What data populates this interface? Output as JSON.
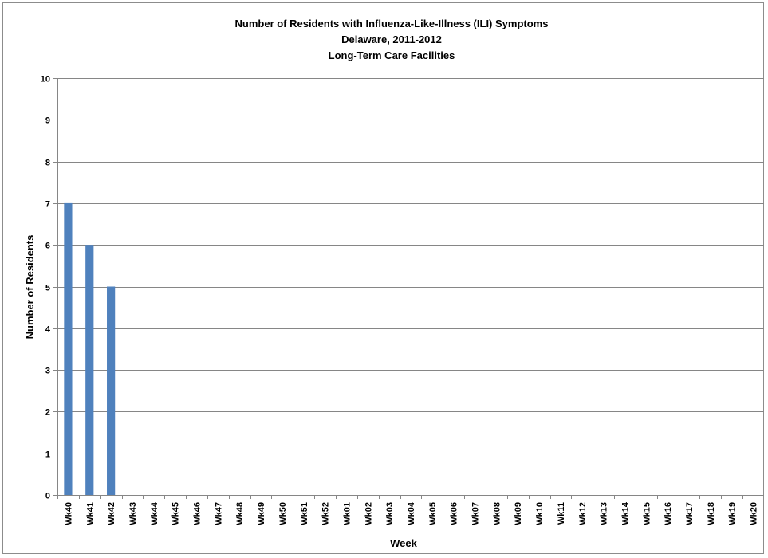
{
  "chart_data": {
    "type": "bar",
    "title": [
      "Number of Residents with Influenza-Like-Illness (ILI) Symptoms",
      "Delaware, 2011-2012",
      "Long-Term Care Facilities"
    ],
    "xlabel": "Week",
    "ylabel": "Number of Residents",
    "ylim": [
      0,
      10
    ],
    "yticks": [
      "0",
      "1",
      "2",
      "3",
      "4",
      "5",
      "6",
      "7",
      "8",
      "9",
      "10"
    ],
    "categories": [
      "Wk40",
      "Wk41",
      "Wk42",
      "Wk43",
      "Wk44",
      "Wk45",
      "Wk46",
      "Wk47",
      "Wk48",
      "Wk49",
      "Wk50",
      "Wk51",
      "Wk52",
      "Wk01",
      "Wk02",
      "Wk03",
      "Wk04",
      "Wk05",
      "Wk06",
      "Wk07",
      "Wk08",
      "Wk09",
      "Wk10",
      "Wk11",
      "Wk12",
      "Wk13",
      "Wk14",
      "Wk15",
      "Wk16",
      "Wk17",
      "Wk18",
      "Wk19",
      "Wk20"
    ],
    "values": [
      7,
      6,
      5,
      0,
      0,
      0,
      0,
      0,
      0,
      0,
      0,
      0,
      0,
      0,
      0,
      0,
      0,
      0,
      0,
      0,
      0,
      0,
      0,
      0,
      0,
      0,
      0,
      0,
      0,
      0,
      0,
      0,
      0
    ],
    "grid": true,
    "legend": "none",
    "colors": {
      "bar": "#4f81bd",
      "grid": "#868686"
    }
  }
}
